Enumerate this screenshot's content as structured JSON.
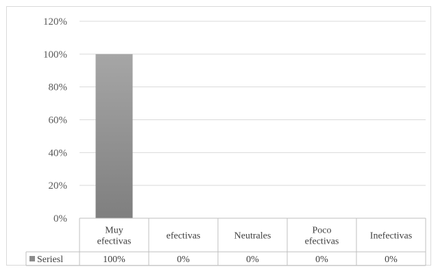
{
  "chart_data": {
    "type": "bar",
    "categories": [
      "Muy efectivas",
      "efectivas",
      "Neutrales",
      "Poco efectivas",
      "Inefectivas"
    ],
    "category_label_lines": [
      [
        "Muy",
        "efectivas"
      ],
      [
        "efectivas"
      ],
      [
        "Neutrales"
      ],
      [
        "Poco",
        "efectivas"
      ],
      [
        "Inefectivas"
      ]
    ],
    "series": [
      {
        "name": "Seriesl",
        "values": [
          100,
          0,
          0,
          0,
          0
        ],
        "value_labels": [
          "100%",
          "0%",
          "0%",
          "0%",
          "0%"
        ],
        "color": "#8c8c8c"
      }
    ],
    "ylim": [
      0,
      120
    ],
    "y_ticks": [
      "0%",
      "20%",
      "40%",
      "60%",
      "80%",
      "100%",
      "120%"
    ],
    "y_tick_values": [
      0,
      20,
      40,
      60,
      80,
      100,
      120
    ],
    "grid": true,
    "legend": "data-table",
    "title": "",
    "xlabel": "",
    "ylabel": ""
  },
  "colors": {
    "gridline": "#d9d9d9",
    "table_border": "#bfbfbf",
    "bar_top": "#a6a6a6",
    "bar_bottom": "#7f7f7f"
  }
}
